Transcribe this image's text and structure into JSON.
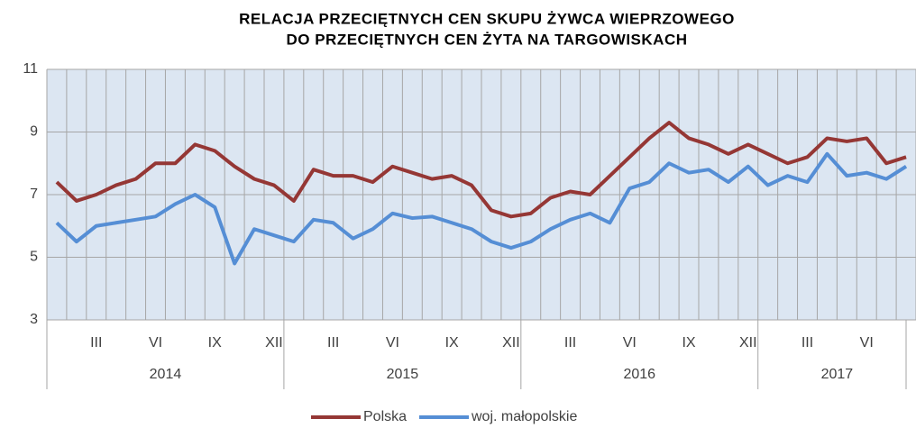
{
  "chart_data": {
    "type": "line",
    "title_lines": [
      "RELACJA PRZECIĘTNYCH CEN SKUPU ŻYWCA WIEPRZOWEGO",
      "DO PRZECIĘTNYCH CEN ŻYTA NA TARGOWISKACH"
    ],
    "categories": [
      null,
      null,
      "III",
      null,
      null,
      "VI",
      null,
      null,
      "IX",
      null,
      null,
      "XII",
      null,
      null,
      "III",
      null,
      null,
      "VI",
      null,
      null,
      "IX",
      null,
      null,
      "XII",
      null,
      null,
      "III",
      null,
      null,
      "VI",
      null,
      null,
      "IX",
      null,
      null,
      "XII",
      null,
      null,
      "III",
      null,
      null,
      "VI",
      null,
      null
    ],
    "year_groups": [
      "2014",
      "2015",
      "2016",
      "2017"
    ],
    "series": [
      {
        "name": "Polska",
        "color": "#953735",
        "values": [
          7.4,
          6.8,
          7.0,
          7.3,
          7.5,
          8.0,
          8.0,
          8.6,
          8.4,
          7.9,
          7.5,
          7.3,
          6.8,
          7.8,
          7.6,
          7.6,
          7.4,
          7.9,
          7.7,
          7.5,
          7.6,
          7.3,
          6.5,
          6.3,
          6.4,
          6.9,
          7.1,
          7.0,
          7.6,
          8.2,
          8.8,
          9.3,
          8.8,
          8.6,
          8.3,
          8.6,
          8.3,
          8.0,
          8.2,
          8.8,
          8.7,
          8.8,
          8.0,
          8.2
        ]
      },
      {
        "name": "woj. małopolskie",
        "color": "#558ed5",
        "values": [
          6.1,
          5.5,
          6.0,
          6.1,
          6.2,
          6.3,
          6.7,
          7.0,
          6.6,
          4.8,
          5.9,
          5.7,
          5.5,
          6.2,
          6.1,
          5.6,
          5.9,
          6.4,
          6.25,
          6.3,
          6.1,
          5.9,
          5.5,
          5.3,
          5.5,
          5.9,
          6.2,
          6.4,
          6.1,
          7.2,
          7.4,
          8.0,
          7.7,
          7.8,
          7.4,
          7.9,
          7.3,
          7.6,
          7.4,
          8.3,
          7.6,
          7.7,
          7.5,
          7.9
        ]
      }
    ],
    "ylim": [
      3,
      11
    ],
    "yticks": [
      3,
      5,
      7,
      9,
      11
    ],
    "grid": true
  }
}
